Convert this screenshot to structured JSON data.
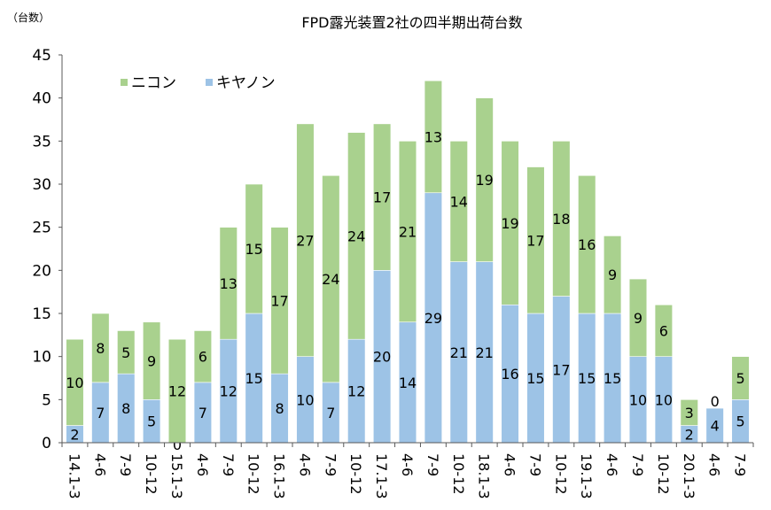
{
  "chart_data": {
    "type": "bar",
    "stacked": true,
    "title": "FPD露光装置2社の四半期出荷台数",
    "ylabel": "（台数）",
    "xlabel": "",
    "ylim": [
      0,
      45
    ],
    "yticks": [
      0,
      5,
      10,
      15,
      20,
      25,
      30,
      35,
      40,
      45
    ],
    "grid": false,
    "legend_position": "top-left",
    "categories": [
      "14.1-3",
      "4-6",
      "7-9",
      "10-12",
      "15.1-3",
      "4-6",
      "7-9",
      "10-12",
      "16.1-3",
      "4-6",
      "7-9",
      "10-12",
      "17.1-3",
      "4-6",
      "7-9",
      "10-12",
      "18.1-3",
      "4-6",
      "7-9",
      "10-12",
      "19.1-3",
      "4-6",
      "7-9",
      "10-12",
      "20.1-3",
      "4-6",
      "7-9"
    ],
    "series": [
      {
        "name": "キヤノン",
        "color": "#9dc3e6",
        "values": [
          2,
          7,
          8,
          5,
          0,
          7,
          12,
          15,
          8,
          10,
          7,
          12,
          20,
          14,
          29,
          21,
          21,
          16,
          15,
          17,
          15,
          15,
          10,
          10,
          2,
          4,
          5
        ]
      },
      {
        "name": "ニコン",
        "color": "#a9d18e",
        "values": [
          10,
          8,
          5,
          9,
          12,
          6,
          13,
          15,
          17,
          27,
          24,
          24,
          17,
          21,
          13,
          14,
          19,
          19,
          17,
          18,
          16,
          9,
          9,
          6,
          3,
          0,
          5
        ]
      }
    ],
    "legend_order": [
      "ニコン",
      "キヤノン"
    ]
  }
}
